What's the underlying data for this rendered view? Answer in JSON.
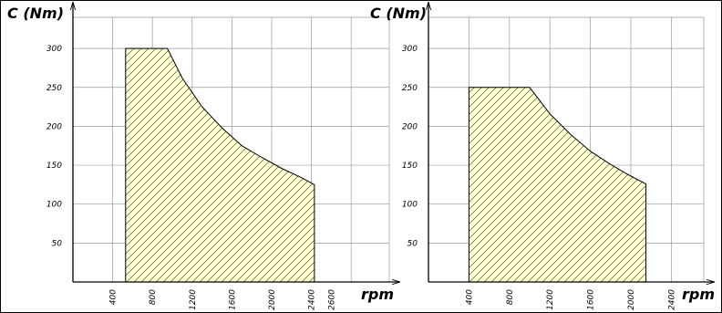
{
  "chart_data": [
    {
      "type": "area",
      "title": "",
      "xlabel": "rpm",
      "ylabel": "C (Nm)",
      "xlim": [
        0,
        2700
      ],
      "ylim": [
        0,
        345
      ],
      "x_ticks": [
        "400",
        "800",
        "1200",
        "1600",
        "2000",
        "2400",
        "2600"
      ],
      "y_ticks": [
        "50",
        "100",
        "150",
        "200",
        "250",
        "300"
      ],
      "grid": true,
      "series": [
        {
          "name": "",
          "fill": "#ffffd0",
          "hatch": true,
          "x": [
            530,
            530,
            950,
            1100,
            1300,
            1500,
            1700,
            1900,
            2100,
            2300,
            2430,
            2430
          ],
          "y": [
            0,
            300,
            300,
            262,
            225,
            198,
            175,
            160,
            146,
            134,
            125,
            0
          ]
        }
      ]
    },
    {
      "type": "area",
      "title": "",
      "xlabel": "rpm",
      "ylabel": "C (Nm)",
      "xlim": [
        0,
        2700
      ],
      "ylim": [
        0,
        345
      ],
      "x_ticks": [
        "400",
        "800",
        "1200",
        "1600",
        "2000",
        "2400"
      ],
      "y_ticks": [
        "50",
        "100",
        "150",
        "200",
        "250",
        "300"
      ],
      "grid": true,
      "series": [
        {
          "name": "",
          "fill": "#ffffd0",
          "hatch": true,
          "x": [
            400,
            400,
            1000,
            1200,
            1400,
            1600,
            1800,
            2000,
            2150,
            2150
          ],
          "y": [
            0,
            250,
            250,
            216,
            190,
            168,
            151,
            136,
            126,
            0
          ]
        }
      ]
    }
  ]
}
